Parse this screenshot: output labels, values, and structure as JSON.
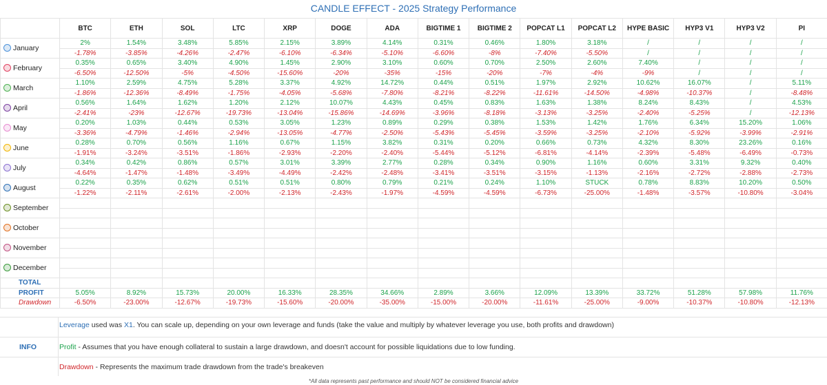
{
  "title": "CANDLE EFFECT - 2025 Strategy Performance",
  "columns": [
    "BTC",
    "ETH",
    "SOL",
    "LTC",
    "XRP",
    "DOGE",
    "ADA",
    "BIGTIME 1",
    "BIGTIME 2",
    "POPCAT L1",
    "POPCAT L2",
    "HYPE BASIC",
    "HYP3 V1",
    "HYP3 V2",
    "PI"
  ],
  "months": [
    {
      "name": "January",
      "icon": "snowman-icon",
      "color": "#4a90d9",
      "profit": [
        "2%",
        "1.54%",
        "3.48%",
        "5.85%",
        "2.15%",
        "3.89%",
        "4.14%",
        "0.31%",
        "0.46%",
        "1.80%",
        "3.18%",
        "/",
        "/",
        "/",
        "/"
      ],
      "drawdown": [
        "-1.78%",
        "-3.85%",
        "-4.26%",
        "-2.47%",
        "-6.10%",
        "-6.34%",
        "-5.10%",
        "-6.60%",
        "-8%",
        "-7.40%",
        "-5.50%",
        "/",
        "/",
        "/",
        "/"
      ]
    },
    {
      "name": "February",
      "icon": "heart-icon",
      "color": "#e04060",
      "profit": [
        "0.35%",
        "0.65%",
        "3.40%",
        "4.90%",
        "1.45%",
        "2.90%",
        "3.10%",
        "0.60%",
        "0.70%",
        "2.50%",
        "2.60%",
        "7.40%",
        "/",
        "/",
        "/"
      ],
      "drawdown": [
        "-6.50%",
        "-12.50%",
        "-5%",
        "-4.50%",
        "-15.60%",
        "-20%",
        "-35%",
        "-15%",
        "-20%",
        "-7%",
        "-4%",
        "-9%",
        "/",
        "/",
        "/"
      ]
    },
    {
      "name": "March",
      "icon": "clover-icon",
      "color": "#4caf50",
      "profit": [
        "1.10%",
        "2.59%",
        "4.75%",
        "5.28%",
        "3.37%",
        "4.92%",
        "14.72%",
        "0.44%",
        "0.51%",
        "1.97%",
        "2.92%",
        "10.62%",
        "16.07%",
        "/",
        "5.11%"
      ],
      "drawdown": [
        "-1.86%",
        "-12.36%",
        "-8.49%",
        "-1.75%",
        "-4.05%",
        "-5.68%",
        "-7.80%",
        "-8.21%",
        "-8.22%",
        "-11.61%",
        "-14.50%",
        "-4.98%",
        "-10.37%",
        "/",
        "-8.48%"
      ]
    },
    {
      "name": "April",
      "icon": "umbrella-icon",
      "color": "#7b3fa0",
      "profit": [
        "0.56%",
        "1.64%",
        "1.62%",
        "1.20%",
        "2.12%",
        "10.07%",
        "4.43%",
        "0.45%",
        "0.83%",
        "1.63%",
        "1.38%",
        "8.24%",
        "8.43%",
        "/",
        "4.53%"
      ],
      "drawdown": [
        "-2.41%",
        "-23%",
        "-12.67%",
        "-19.73%",
        "-13.04%",
        "-15.86%",
        "-14.69%",
        "-3.96%",
        "-8.18%",
        "-3.13%",
        "-3.25%",
        "-2.40%",
        "-5.25%",
        "/",
        "-12.13%"
      ]
    },
    {
      "name": "May",
      "icon": "flower-icon",
      "color": "#e88ad0",
      "profit": [
        "0.20%",
        "1.03%",
        "0.44%",
        "0.53%",
        "3.05%",
        "1.23%",
        "0.89%",
        "0.29%",
        "0.38%",
        "1.53%",
        "1.42%",
        "1.76%",
        "6.34%",
        "15.20%",
        "1.06%"
      ],
      "drawdown": [
        "-3.36%",
        "-4.79%",
        "-1.46%",
        "-2.94%",
        "-13.05%",
        "-4.77%",
        "-2.50%",
        "-5.43%",
        "-5.45%",
        "-3.59%",
        "-3.25%",
        "-2.10%",
        "-5.92%",
        "-3.99%",
        "-2.91%"
      ]
    },
    {
      "name": "June",
      "icon": "sun-icon",
      "color": "#f0b400",
      "profit": [
        "0.28%",
        "0.70%",
        "0.56%",
        "1.16%",
        "0.67%",
        "1.15%",
        "3.82%",
        "0.31%",
        "0.20%",
        "0.66%",
        "0.73%",
        "4.32%",
        "8.30%",
        "23.26%",
        "0.16%"
      ],
      "drawdown": [
        "-1.91%",
        "-3.24%",
        "-3.51%",
        "-1.86%",
        "-2.93%",
        "-2.20%",
        "-2.40%",
        "-5.44%",
        "-5.12%",
        "-6.81%",
        "-4.14%",
        "-2.39%",
        "-5.48%",
        "-6.49%",
        "-0.73%"
      ]
    },
    {
      "name": "July",
      "icon": "popsicle-icon",
      "color": "#8a6fd0",
      "profit": [
        "0.34%",
        "0.42%",
        "0.86%",
        "0.57%",
        "3.01%",
        "3.39%",
        "2.77%",
        "0.28%",
        "0.34%",
        "0.90%",
        "1.16%",
        "0.60%",
        "3.31%",
        "9.32%",
        "0.40%"
      ],
      "drawdown": [
        "-4.64%",
        "-1.47%",
        "-1.48%",
        "-3.49%",
        "-4.49%",
        "-2.42%",
        "-2.48%",
        "-3.41%",
        "-3.51%",
        "-3.15%",
        "-1.13%",
        "-2.16%",
        "-2.72%",
        "-2.88%",
        "-2.73%"
      ]
    },
    {
      "name": "August",
      "icon": "beach-icon",
      "color": "#2e6fb5",
      "profit": [
        "0.22%",
        "0.35%",
        "0.62%",
        "0.51%",
        "0.51%",
        "0.80%",
        "0.79%",
        "0.21%",
        "0.24%",
        "1.10%",
        "STUCK",
        "0.78%",
        "8.83%",
        "10.20%",
        "0.50%"
      ],
      "drawdown": [
        "-1.22%",
        "-2.11%",
        "-2.61%",
        "-2.00%",
        "-2.13%",
        "-2.43%",
        "-1.97%",
        "-4.59%",
        "-4.59%",
        "-6.73%",
        "-25.00%",
        "-1.48%",
        "-3.57%",
        "-10.80%",
        "-3.04%"
      ]
    },
    {
      "name": "September",
      "icon": "leaf-icon",
      "color": "#6b8e23",
      "profit": [],
      "drawdown": []
    },
    {
      "name": "October",
      "icon": "pumpkin-icon",
      "color": "#e07020",
      "profit": [],
      "drawdown": []
    },
    {
      "name": "November",
      "icon": "gift-icon",
      "color": "#c05080",
      "profit": [],
      "drawdown": []
    },
    {
      "name": "December",
      "icon": "tree-icon",
      "color": "#3a9a3a",
      "profit": [],
      "drawdown": []
    }
  ],
  "total": {
    "label": "TOTAL",
    "profit_label": "PROFIT",
    "drawdown_label": "Drawdown",
    "profit": [
      "5.05%",
      "8.92%",
      "15.73%",
      "20.00%",
      "16.33%",
      "28.35%",
      "34.66%",
      "2.89%",
      "3.66%",
      "12.09%",
      "13.39%",
      "33.72%",
      "51.28%",
      "57.98%",
      "11.76%"
    ],
    "drawdown": [
      "-6.50%",
      "-23.00%",
      "-12.67%",
      "-19.73%",
      "-15.60%",
      "-20.00%",
      "-35.00%",
      "-15.00%",
      "-20.00%",
      "-11.61%",
      "-25.00%",
      "-9.00%",
      "-10.37%",
      "-10.80%",
      "-12.13%"
    ]
  },
  "info": {
    "label": "INFO",
    "leverage_kw": "Leverage",
    "leverage_a": " used was ",
    "leverage_val": "X1",
    "leverage_b": ". You can scale up, depending on your own leverage and funds (take the value and multiply by whatever leverage you use, both profits and drawdown)",
    "profit_kw": "Profit",
    "profit_text": " - Assumes that you have enough collateral to sustain a large drawdown, and doesn't account for possible liquidations due to low funding.",
    "drawdown_kw": "Drawdown",
    "drawdown_text": " - Represents the maximum trade drawdown from the trade's breakeven"
  },
  "footer": "*All data represents past performance and should NOT be considered financial advice"
}
